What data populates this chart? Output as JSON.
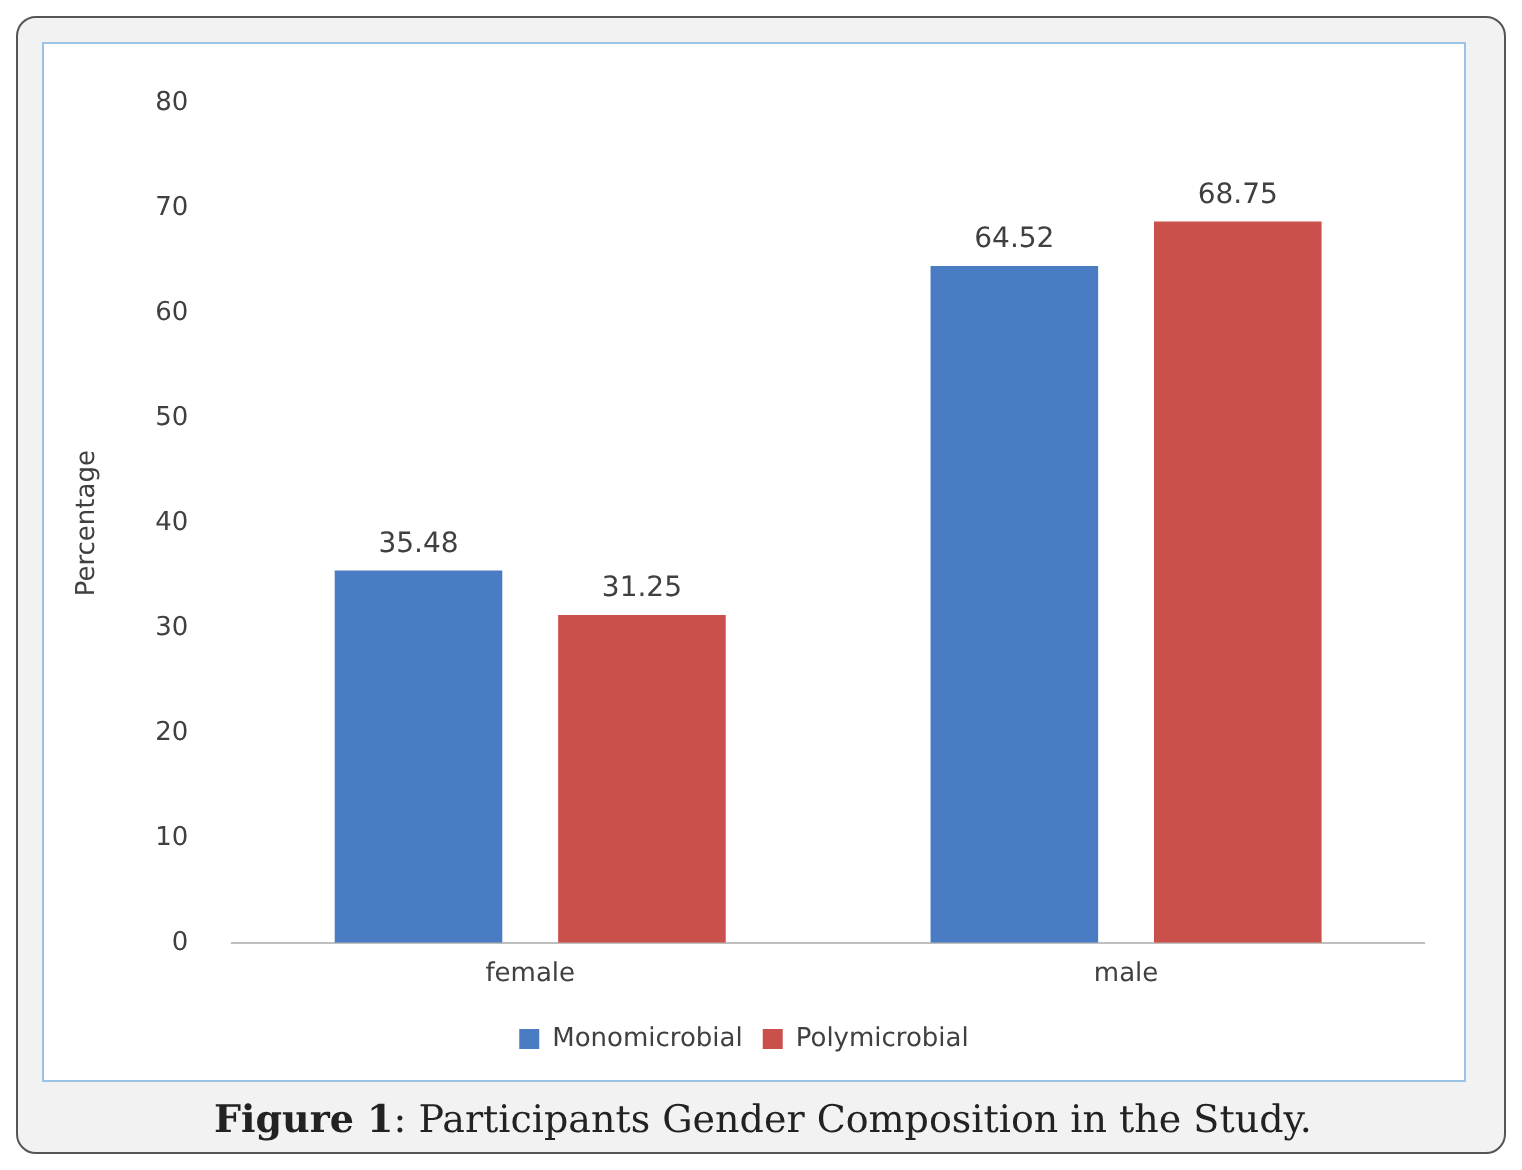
{
  "chart_data": {
    "type": "bar",
    "ylabel": "Percentage",
    "categories": [
      "female",
      "male"
    ],
    "series": [
      {
        "name": "Monomicrobial",
        "color": "#4a7cc4",
        "values": [
          35.48,
          64.52
        ]
      },
      {
        "name": "Polymicrobial",
        "color": "#c9504b",
        "values": [
          31.25,
          68.75
        ]
      }
    ],
    "ylim": [
      0,
      80
    ],
    "yticks": [
      0,
      10,
      20,
      30,
      40,
      50,
      60,
      70,
      80
    ],
    "grid": false,
    "legend": "bottom",
    "data_labels": true,
    "annotations": [
      "Figure 1: Participants Gender Composition in the Study."
    ]
  }
}
